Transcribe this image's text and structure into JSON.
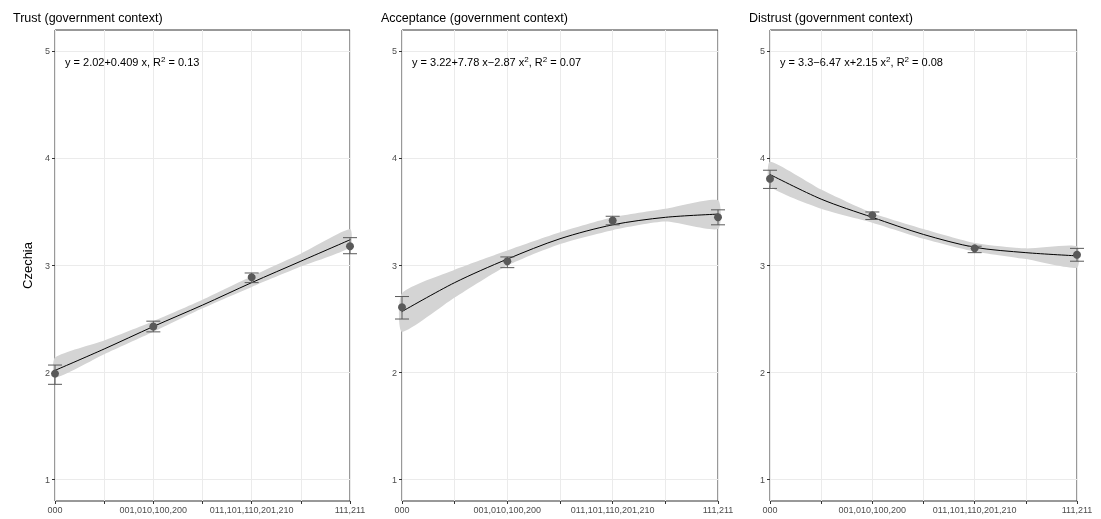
{
  "chart_data": [
    {
      "type": "scatter",
      "title": "Trust (government context)",
      "ylabel": "Czechia",
      "annotations": [
        "y = 2.02+0.409 x, R$^{2}$ = 0.13"
      ],
      "categories": [
        "000",
        null,
        "001,010,100,200",
        null,
        "011,101,110,201,210",
        null,
        "111,211"
      ],
      "ylim": [
        0.8,
        5.2
      ],
      "yticks": [
        1,
        2,
        3,
        4,
        5
      ],
      "grid": true,
      "series": [
        {
          "type": "line",
          "color": "#000000",
          "marker": "none",
          "values": [
            2.02,
            2.22,
            2.43,
            2.63,
            2.84,
            3.04,
            3.24
          ],
          "lower": [
            1.95,
            2.17,
            2.38,
            2.6,
            2.8,
            2.99,
            3.17
          ],
          "upper": [
            2.14,
            2.3,
            2.48,
            2.68,
            2.9,
            3.11,
            3.34
          ]
        },
        {
          "type": "scatter",
          "color": "#595959",
          "marker": "circle",
          "values": [
            1.99,
            null,
            2.43,
            null,
            2.89,
            null,
            3.18
          ],
          "errors": [
            [
              1.89,
              2.07
            ],
            null,
            [
              2.38,
              2.48
            ],
            null,
            [
              2.84,
              2.93
            ],
            null,
            [
              3.11,
              3.26
            ]
          ]
        }
      ]
    },
    {
      "type": "scatter",
      "title": "Acceptance (government context)",
      "annotations": [
        "y = 3.22+7.78 x−2.87 x$^{2}$, R$^{2}$ = 0.07"
      ],
      "categories": [
        "000",
        null,
        "001,010,100,200",
        null,
        "011,101,110,201,210",
        null,
        "111,211"
      ],
      "ylim": [
        0.8,
        5.2
      ],
      "yticks": [
        1,
        2,
        3,
        4,
        5
      ],
      "grid": true,
      "series": [
        {
          "type": "line",
          "color": "#000000",
          "marker": "none",
          "values": [
            2.57,
            2.84,
            3.06,
            3.25,
            3.38,
            3.45,
            3.48
          ],
          "lower": [
            2.38,
            2.7,
            3,
            3.2,
            3.33,
            3.41,
            3.34
          ],
          "upper": [
            2.74,
            2.96,
            3.14,
            3.31,
            3.45,
            3.53,
            3.61
          ]
        },
        {
          "type": "scatter",
          "color": "#595959",
          "marker": "circle",
          "values": [
            2.61,
            null,
            3.04,
            null,
            3.42,
            null,
            3.45
          ],
          "errors": [
            [
              2.5,
              2.71
            ],
            null,
            [
              2.98,
              3.08
            ],
            null,
            [
              3.38,
              3.46
            ],
            null,
            [
              3.38,
              3.52
            ]
          ]
        }
      ]
    },
    {
      "type": "scatter",
      "title": "Distrust (government context)",
      "annotations": [
        "y = 3.3−6.47 x+2.15 x$^{2}$, R$^{2}$ = 0.08"
      ],
      "categories": [
        "000",
        null,
        "001,010,100,200",
        null,
        "011,101,110,201,210",
        null,
        "111,211"
      ],
      "ylim": [
        0.8,
        5.2
      ],
      "yticks": [
        1,
        2,
        3,
        4,
        5
      ],
      "grid": true,
      "series": [
        {
          "type": "line",
          "color": "#000000",
          "marker": "none",
          "values": [
            3.85,
            3.62,
            3.45,
            3.29,
            3.17,
            3.12,
            3.09
          ],
          "lower": [
            3.74,
            3.53,
            3.4,
            3.25,
            3.13,
            3.06,
            2.98
          ],
          "upper": [
            3.97,
            3.71,
            3.49,
            3.34,
            3.21,
            3.16,
            3.18
          ]
        },
        {
          "type": "scatter",
          "color": "#595959",
          "marker": "circle",
          "values": [
            3.81,
            null,
            3.47,
            null,
            3.16,
            null,
            3.1
          ],
          "errors": [
            [
              3.72,
              3.89
            ],
            null,
            [
              3.43,
              3.5
            ],
            null,
            [
              3.12,
              3.18
            ],
            null,
            [
              3.04,
              3.16
            ]
          ]
        }
      ]
    }
  ]
}
